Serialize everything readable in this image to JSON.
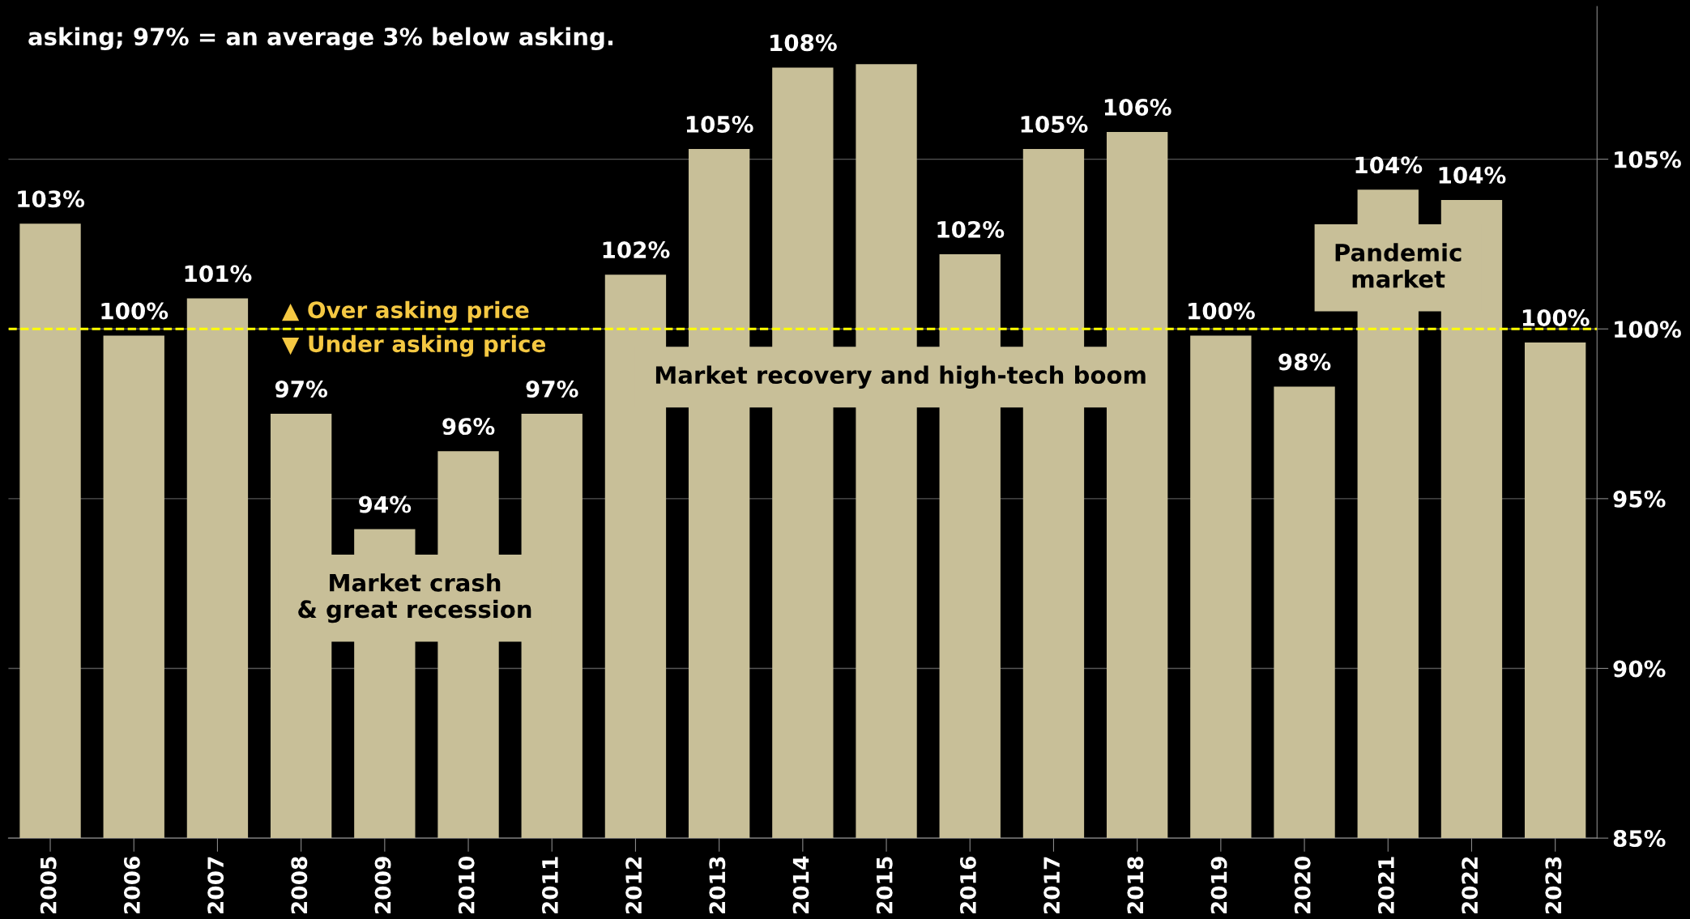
{
  "chart_data": {
    "type": "bar",
    "annotations": [
      "asking; 97% = an average 3% below asking.",
      "▲ Over asking price",
      "▼ Under asking price",
      "Market crash\n& great recession",
      "Market recovery and high-tech boom",
      "Pandemic\nmarket"
    ],
    "categories": [
      "2005",
      "2006",
      "2007",
      "2008",
      "2009",
      "2010",
      "2011",
      "2012",
      "2013",
      "2014",
      "2015",
      "2016",
      "2017",
      "2018",
      "2019",
      "2020",
      "2021",
      "2022",
      "2023"
    ],
    "values": [
      103.1,
      99.8,
      100.9,
      97.5,
      94.1,
      96.4,
      97.5,
      101.6,
      105.3,
      107.7,
      107.8,
      102.2,
      105.3,
      105.8,
      99.8,
      98.3,
      104.1,
      103.8,
      99.6
    ],
    "value_labels": [
      "103%",
      "100%",
      "101%",
      "97%",
      "94%",
      "96%",
      "97%",
      "102%",
      "105%",
      "108%",
      null,
      "102%",
      "105%",
      "106%",
      "100%",
      "98%",
      "104%",
      "104%",
      "100%"
    ],
    "color": "#c8bf98",
    "ylim": [
      85,
      109.5
    ],
    "yticks": [
      {
        "value": 85,
        "label": "85%"
      },
      {
        "value": 90,
        "label": "90%"
      },
      {
        "value": 95,
        "label": "95%"
      },
      {
        "value": 100,
        "label": "100%"
      },
      {
        "value": 105,
        "label": "105%"
      }
    ],
    "ref_lines": [
      {
        "axis": "y",
        "value": 100,
        "color": "#ffff00",
        "line_style": "dashed"
      }
    ],
    "grid": "y",
    "legend": false
  }
}
